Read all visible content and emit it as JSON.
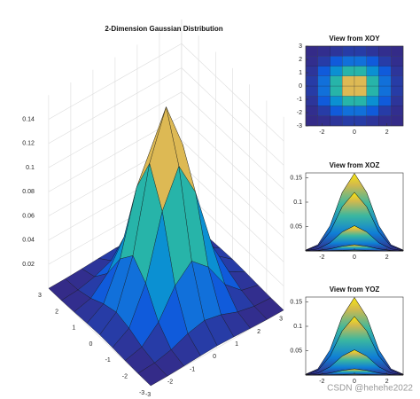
{
  "chart_data": [
    {
      "type": "surface",
      "title": "2-Dimension Gaussian Distribution",
      "x": [
        -3,
        -2.25,
        -1.5,
        -0.75,
        0,
        0.75,
        1.5,
        2.25,
        3
      ],
      "y": [
        -3,
        -2.25,
        -1.5,
        -0.75,
        0,
        0.75,
        1.5,
        2.25,
        3
      ],
      "z": [
        [
          0,
          0.0001,
          0.0006,
          0.0013,
          0.0018,
          0.0013,
          0.0006,
          0.0001,
          0
        ],
        [
          0.0001,
          0.001,
          0.0041,
          0.0096,
          0.0127,
          0.0096,
          0.0041,
          0.001,
          0.0001
        ],
        [
          0.0006,
          0.0041,
          0.0168,
          0.039,
          0.0517,
          0.039,
          0.0168,
          0.0041,
          0.0006
        ],
        [
          0.0013,
          0.0096,
          0.039,
          0.0907,
          0.1202,
          0.0907,
          0.039,
          0.0096,
          0.0013
        ],
        [
          0.0018,
          0.0127,
          0.0517,
          0.1202,
          0.1592,
          0.1202,
          0.0517,
          0.0127,
          0.0018
        ],
        [
          0.0013,
          0.0096,
          0.039,
          0.0907,
          0.1202,
          0.0907,
          0.039,
          0.0096,
          0.0013
        ],
        [
          0.0006,
          0.0041,
          0.0168,
          0.039,
          0.0517,
          0.039,
          0.0168,
          0.0041,
          0.0006
        ],
        [
          0.0001,
          0.001,
          0.0041,
          0.0096,
          0.0127,
          0.0096,
          0.0041,
          0.001,
          0.0001
        ],
        [
          0,
          0.0001,
          0.0006,
          0.0013,
          0.0018,
          0.0013,
          0.0006,
          0.0001,
          0
        ]
      ],
      "xlim": [
        -3,
        3
      ],
      "ylim": [
        -3,
        3
      ],
      "zlim": [
        0,
        0.16
      ],
      "xticks": [
        -3,
        -2,
        -1,
        0,
        1,
        2,
        3
      ],
      "yticks": [
        -3,
        -2,
        -1,
        0,
        1,
        2,
        3
      ],
      "zticks": [
        0.02,
        0.04,
        0.06,
        0.08,
        0.1,
        0.12,
        0.14
      ],
      "grid": true
    },
    {
      "type": "heatmap",
      "title": "View from XOY",
      "xlim": [
        -3,
        3
      ],
      "ylim": [
        -3,
        3
      ],
      "xticks": [
        -2,
        0,
        2
      ],
      "yticks": [
        -3,
        -2,
        -1,
        0,
        1,
        2,
        3
      ]
    },
    {
      "type": "profile",
      "along": "x",
      "title": "View from XOZ",
      "xlim": [
        -3,
        3
      ],
      "ylim": [
        0,
        0.16
      ],
      "xticks": [
        -2,
        0,
        2
      ],
      "yticks": [
        0.05,
        0.1,
        0.15
      ]
    },
    {
      "type": "profile",
      "along": "y",
      "title": "View from YOZ",
      "xlim": [
        -3,
        3
      ],
      "ylim": [
        0,
        0.16
      ],
      "xticks": [
        -2,
        0,
        2
      ],
      "yticks": [
        0.05,
        0.1,
        0.15
      ]
    }
  ],
  "watermark": "CSDN @hehehe2022"
}
